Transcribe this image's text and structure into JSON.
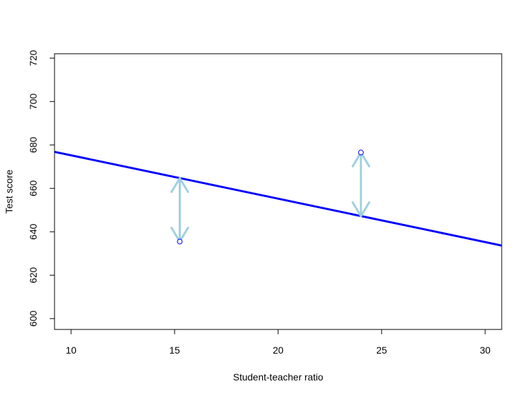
{
  "chart_data": {
    "type": "scatter",
    "title": "",
    "xlabel": "Student-teacher ratio",
    "ylabel": "Test score",
    "xlim": [
      9.2,
      30.8
    ],
    "ylim": [
      595,
      722
    ],
    "x_ticks": [
      10,
      15,
      20,
      25,
      30
    ],
    "y_ticks": [
      600,
      620,
      640,
      660,
      680,
      700,
      720
    ],
    "grid": false,
    "legend": "none",
    "regression_line": {
      "intercept": 695.2,
      "slope": -1.998,
      "color": "#0000ff"
    },
    "points": [
      {
        "x": 15.25,
        "y": 635.5
      },
      {
        "x": 24.0,
        "y": 676.5
      }
    ],
    "residual_arrows": [
      {
        "x": 15.25,
        "from": 635.5,
        "to": 664.7
      },
      {
        "x": 24.0,
        "from": 676.5,
        "to": 647.2
      }
    ],
    "colors": {
      "line": "#0000ff",
      "points": "#0000ff",
      "arrows": "#9fd0e0",
      "axes": "#000000"
    }
  }
}
